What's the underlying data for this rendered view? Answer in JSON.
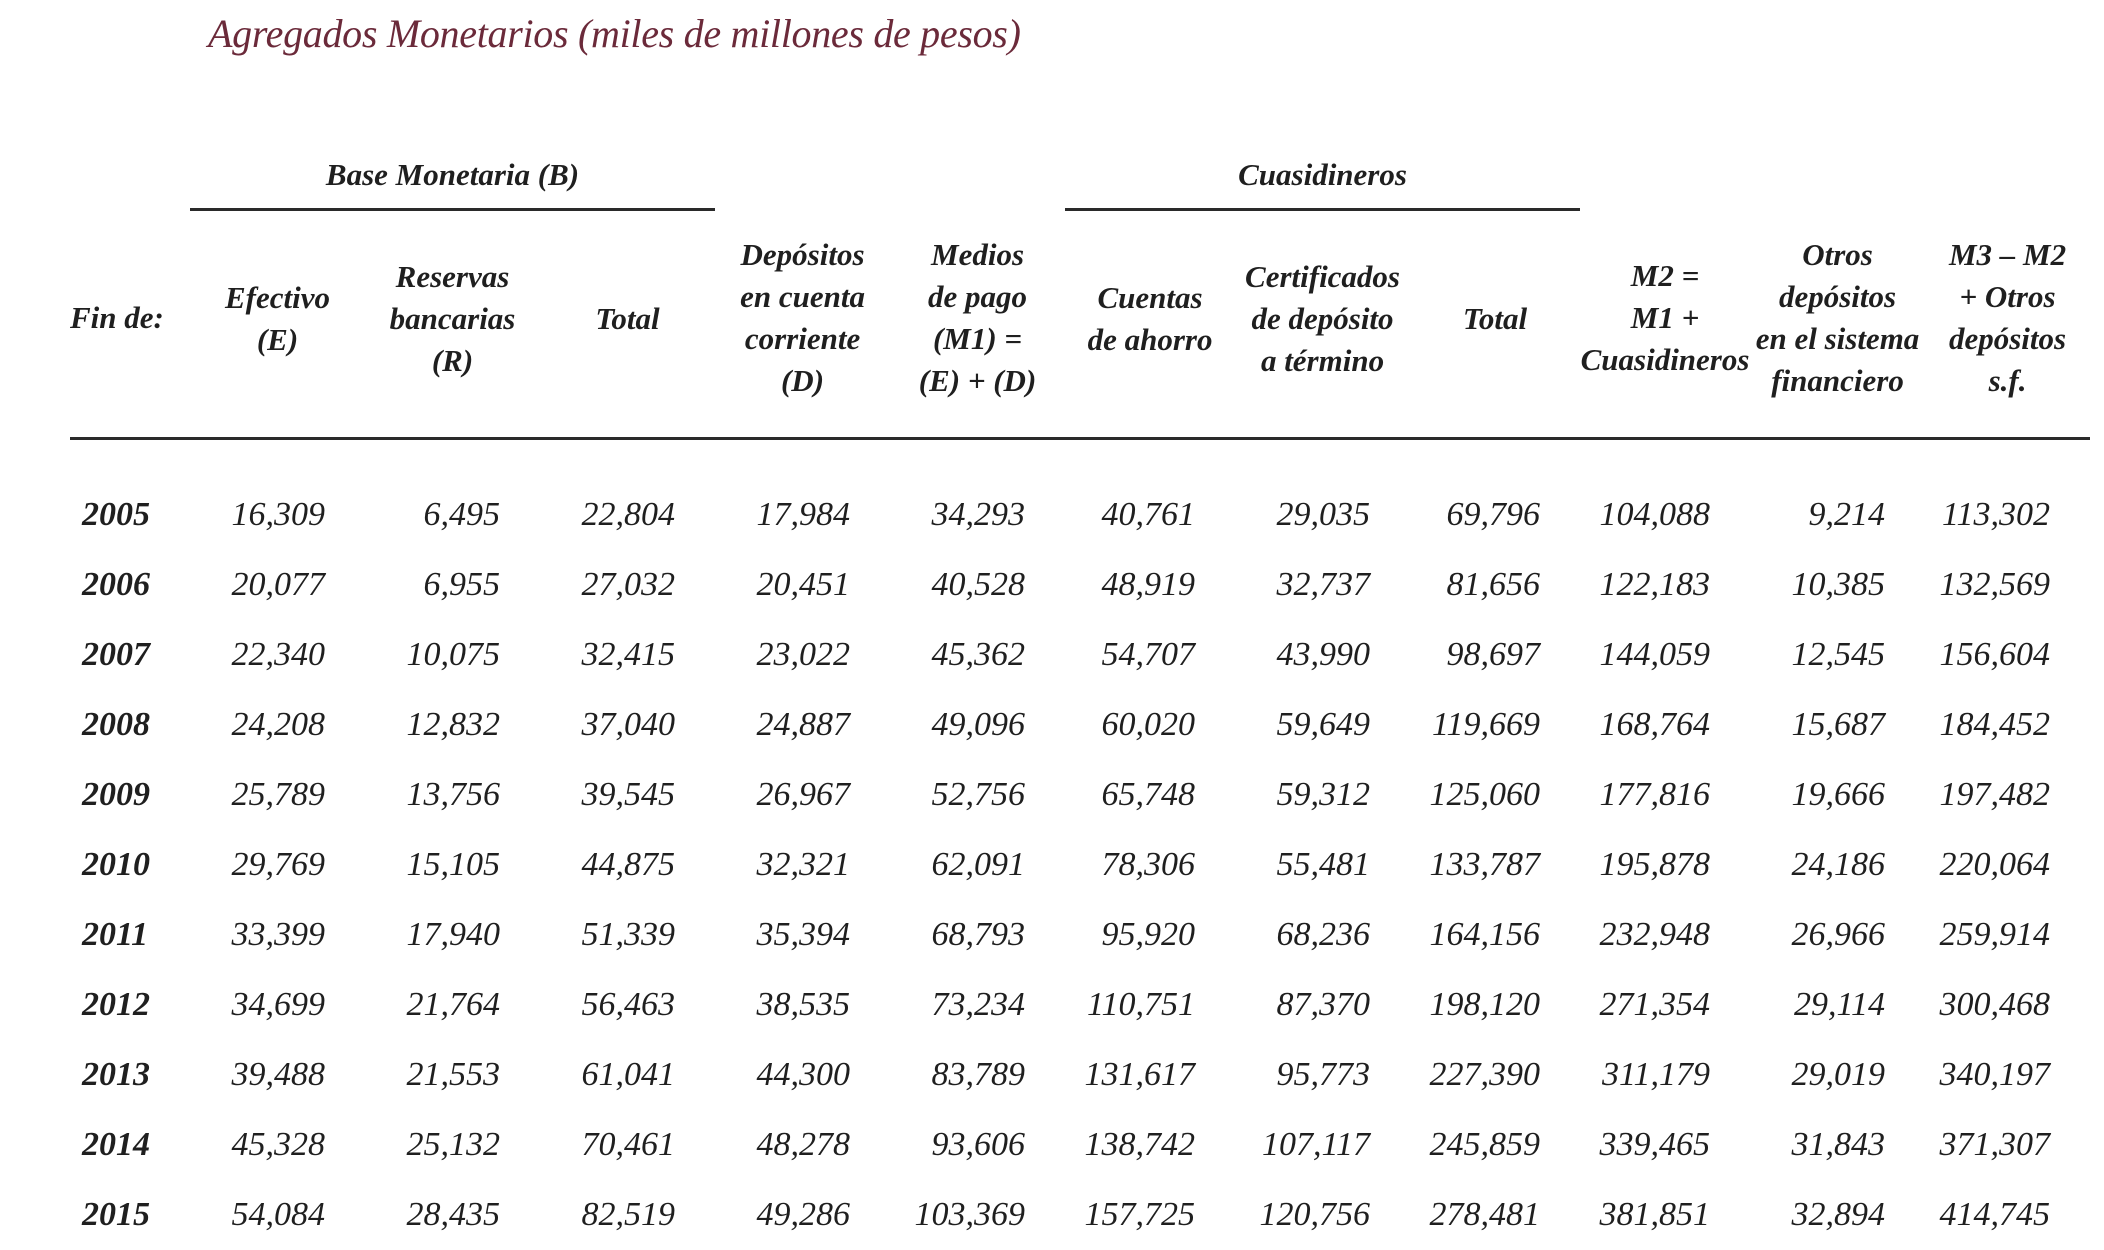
{
  "title": "Agregados Monetarios (miles de millones de pesos)",
  "groups": {
    "base_monetaria": "Base Monetaria (B)",
    "cuasidineros": "Cuasidineros"
  },
  "headers": {
    "fin_de": "Fin de:",
    "efectivo": [
      "Efectivo",
      "(E)"
    ],
    "reservas": [
      "Reservas",
      "bancarias",
      "(R)"
    ],
    "total_base": "Total",
    "depositos": [
      "Depósitos",
      "en cuenta",
      "corriente",
      "(D)"
    ],
    "medios": [
      "Medios",
      "de pago",
      "(M1) =",
      "(E) + (D)"
    ],
    "cuentas": [
      "Cuentas",
      "de ahorro"
    ],
    "certificados": [
      "Certificados",
      "de depósito",
      "a término"
    ],
    "total_cuasi": "Total",
    "m2": [
      "M2 =",
      "M1 +",
      "Cuasidineros"
    ],
    "otros": [
      "Otros",
      "depósitos",
      "en el sistema",
      "financiero"
    ],
    "m3": [
      "M3 – M2",
      "+ Otros",
      "depósitos",
      "s.f."
    ]
  },
  "rows": [
    [
      "2005",
      "16,309",
      "6,495",
      "22,804",
      "17,984",
      "34,293",
      "40,761",
      "29,035",
      "69,796",
      "104,088",
      "9,214",
      "113,302"
    ],
    [
      "2006",
      "20,077",
      "6,955",
      "27,032",
      "20,451",
      "40,528",
      "48,919",
      "32,737",
      "81,656",
      "122,183",
      "10,385",
      "132,569"
    ],
    [
      "2007",
      "22,340",
      "10,075",
      "32,415",
      "23,022",
      "45,362",
      "54,707",
      "43,990",
      "98,697",
      "144,059",
      "12,545",
      "156,604"
    ],
    [
      "2008",
      "24,208",
      "12,832",
      "37,040",
      "24,887",
      "49,096",
      "60,020",
      "59,649",
      "119,669",
      "168,764",
      "15,687",
      "184,452"
    ],
    [
      "2009",
      "25,789",
      "13,756",
      "39,545",
      "26,967",
      "52,756",
      "65,748",
      "59,312",
      "125,060",
      "177,816",
      "19,666",
      "197,482"
    ],
    [
      "2010",
      "29,769",
      "15,105",
      "44,875",
      "32,321",
      "62,091",
      "78,306",
      "55,481",
      "133,787",
      "195,878",
      "24,186",
      "220,064"
    ],
    [
      "2011",
      "33,399",
      "17,940",
      "51,339",
      "35,394",
      "68,793",
      "95,920",
      "68,236",
      "164,156",
      "232,948",
      "26,966",
      "259,914"
    ],
    [
      "2012",
      "34,699",
      "21,764",
      "56,463",
      "38,535",
      "73,234",
      "110,751",
      "87,370",
      "198,120",
      "271,354",
      "29,114",
      "300,468"
    ],
    [
      "2013",
      "39,488",
      "21,553",
      "61,041",
      "44,300",
      "83,789",
      "131,617",
      "95,773",
      "227,390",
      "311,179",
      "29,019",
      "340,197"
    ],
    [
      "2014",
      "45,328",
      "25,132",
      "70,461",
      "48,278",
      "93,606",
      "138,742",
      "107,117",
      "245,859",
      "339,465",
      "31,843",
      "371,307"
    ],
    [
      "2015",
      "54,084",
      "28,435",
      "82,519",
      "49,286",
      "103,369",
      "157,725",
      "120,756",
      "278,481",
      "381,851",
      "32,894",
      "414,745"
    ]
  ]
}
